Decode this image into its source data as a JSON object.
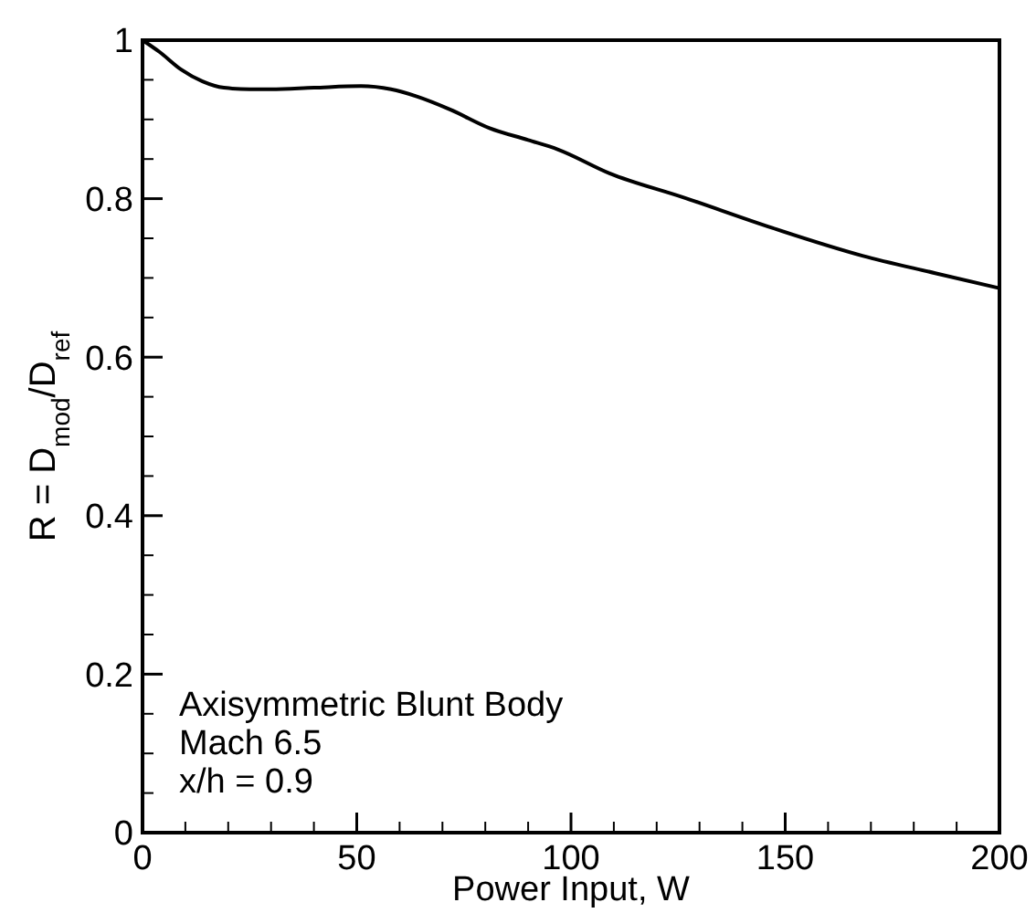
{
  "chart_data": {
    "type": "line",
    "xlabel": "Power Input, W",
    "ylabel": "R = D$_{mod}$/D$_{ref}$",
    "xlim": [
      0,
      200
    ],
    "ylim": [
      0,
      1
    ],
    "xticks": [
      0,
      50,
      100,
      150,
      200
    ],
    "yticks": [
      0,
      0.2,
      0.4,
      0.6,
      0.8,
      1
    ],
    "annotations": [
      "Axisymmetric Blunt Body",
      "Mach 6.5",
      "x/h = 0.9"
    ],
    "marker": "none",
    "line_style": "solid",
    "series": [
      {
        "color": "#000000",
        "x": [
          0,
          4,
          9,
          14,
          19,
          25,
          30,
          40,
          51,
          58,
          64,
          72,
          81,
          90,
          97,
          109,
          126,
          147,
          168,
          185,
          200
        ],
        "values": [
          1,
          0.985,
          0.963,
          0.948,
          0.94,
          0.938,
          0.938,
          0.94,
          0.942,
          0.938,
          0.929,
          0.912,
          0.889,
          0.874,
          0.862,
          0.832,
          0.802,
          0.763,
          0.728,
          0.706,
          0.687
        ]
      }
    ]
  }
}
